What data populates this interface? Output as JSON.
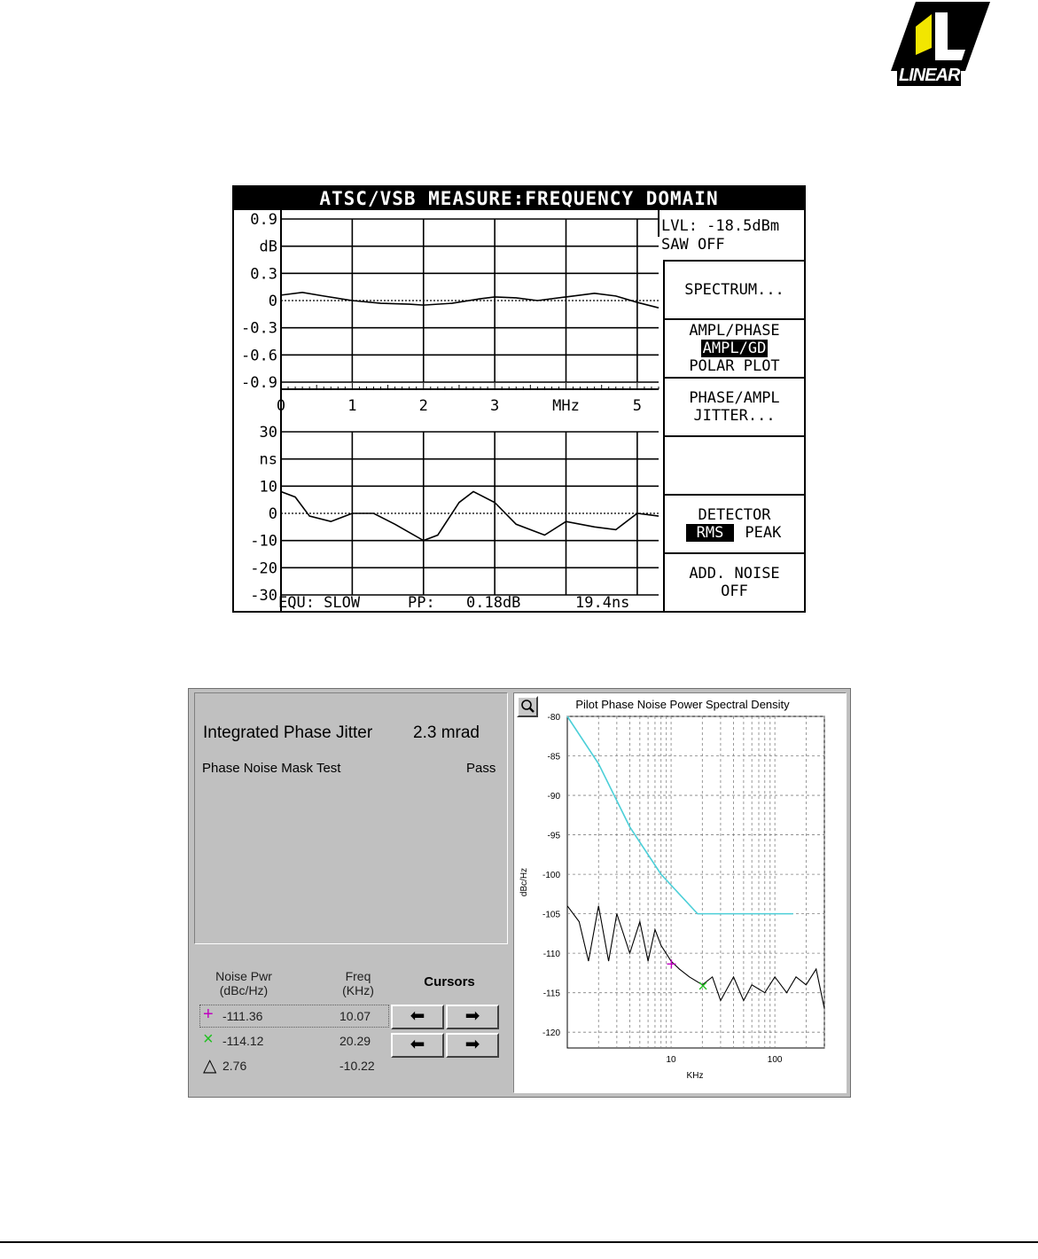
{
  "logo": {
    "text": "LINEAR"
  },
  "atsc": {
    "title": "ATSC/VSB MEASURE:FREQUENCY DOMAIN",
    "status": {
      "lvl": "LVL: -18.5dBm",
      "saw": "SAW OFF"
    },
    "menu": [
      {
        "lines": [
          "SPECTRUM..."
        ]
      },
      {
        "lines": [
          "AMPL/PHASE",
          "AMPL/GD",
          "POLAR PLOT"
        ],
        "highlight": "AMPL/GD"
      },
      {
        "lines": [
          "PHASE/AMPL",
          "JITTER..."
        ]
      },
      {
        "lines": []
      },
      {
        "lines": [
          "DETECTOR"
        ],
        "options": [
          "RMS",
          "PEAK"
        ],
        "highlight": "RMS"
      },
      {
        "lines": [
          "ADD. NOISE",
          "OFF"
        ]
      }
    ],
    "footer": {
      "equ": "EQU: SLOW",
      "pp": "PP:",
      "pp_db": "0.18dB",
      "pp_ns": "19.4ns"
    }
  },
  "phase_noise": {
    "jitter_label": "Integrated Phase Jitter",
    "jitter_value": "2.3 mrad",
    "mask_label": "Phase Noise Mask Test",
    "mask_result": "Pass",
    "table": {
      "col1": "Noise Pwr\n(dBc/Hz)",
      "col2": "Freq\n(KHz)",
      "cursors_label": "Cursors",
      "rows": [
        {
          "marker": "+",
          "color": "#c000c0",
          "noise": "-111.36",
          "freq": "10.07"
        },
        {
          "marker": "×",
          "color": "#20c020",
          "noise": "-114.12",
          "freq": "20.29"
        },
        {
          "marker": "△",
          "color": "#000000",
          "noise": "2.76",
          "freq": "-10.22"
        }
      ],
      "arrows": {
        "left": "⬅",
        "right": "➡"
      }
    }
  },
  "chart_data": [
    {
      "type": "line",
      "xlabel": "MHz",
      "ylabel": "dB",
      "x_ticks": [
        "0",
        "1",
        "2",
        "3",
        "MHz",
        "5"
      ],
      "xlim": [
        0,
        5.3
      ],
      "ylim": [
        -0.9,
        0.9
      ],
      "y_ticks": [
        "0.9",
        "dB",
        "0.3",
        "0",
        "-0.3",
        "-0.6",
        "-0.9"
      ],
      "grid": true,
      "series": [
        {
          "x": [
            0,
            0.3,
            0.6,
            1.0,
            1.4,
            1.8,
            2.0,
            2.4,
            2.8,
            3.0,
            3.3,
            3.6,
            4.0,
            4.4,
            4.7,
            5.0,
            5.3
          ],
          "y": [
            0.06,
            0.09,
            0.05,
            0.0,
            -0.03,
            -0.04,
            -0.05,
            -0.03,
            0.02,
            0.04,
            0.03,
            0.0,
            0.04,
            0.08,
            0.05,
            -0.02,
            -0.08
          ]
        }
      ]
    },
    {
      "type": "line",
      "ylabel": "ns",
      "xlim": [
        0,
        5.3
      ],
      "ylim": [
        -30,
        30
      ],
      "y_ticks": [
        "30",
        "ns",
        "10",
        "0",
        "-10",
        "-20",
        "-30"
      ],
      "grid": true,
      "series": [
        {
          "x": [
            0,
            0.2,
            0.4,
            0.7,
            1.0,
            1.3,
            1.6,
            2.0,
            2.2,
            2.5,
            2.7,
            3.0,
            3.3,
            3.7,
            4.0,
            4.4,
            4.7,
            5.0,
            5.3
          ],
          "y": [
            8,
            6,
            -1,
            -3,
            0,
            0,
            -4,
            -10,
            -8,
            4,
            8,
            4,
            -4,
            -8,
            -3,
            -5,
            -6,
            0,
            -1
          ]
        }
      ]
    },
    {
      "type": "line",
      "title": "Pilot Phase Noise Power Spectral Density",
      "xlabel": "KHz",
      "ylabel": "dBc/Hz",
      "x_scale": "log",
      "xlim": [
        1,
        300
      ],
      "ylim": [
        -122,
        -80
      ],
      "x_ticks": [
        "10",
        "100"
      ],
      "y_ticks": [
        "-80",
        "-85",
        "-90",
        "-95",
        "-100",
        "-105",
        "-110",
        "-115",
        "-120"
      ],
      "grid": true,
      "series": [
        {
          "color": "#4ccfd8",
          "x": [
            1,
            2,
            4,
            8,
            18,
            150
          ],
          "y": [
            -80,
            -86,
            -94,
            -100,
            -105,
            -105
          ]
        },
        {
          "color": "#000000",
          "x": [
            1,
            1.3,
            1.6,
            2.0,
            2.5,
            3.0,
            4.0,
            5.0,
            6.0,
            7.0,
            8.0,
            10,
            12,
            15,
            20,
            25,
            30,
            40,
            50,
            60,
            80,
            100,
            130,
            160,
            200,
            250,
            300
          ],
          "y": [
            -104,
            -106,
            -111,
            -104,
            -111,
            -105,
            -110,
            -106,
            -111,
            -107,
            -109,
            -111,
            -112,
            -113,
            -114,
            -113,
            -116,
            -113,
            -116,
            -114,
            -115,
            -113,
            -115,
            -113,
            -114,
            -112,
            -117
          ]
        }
      ]
    }
  ]
}
